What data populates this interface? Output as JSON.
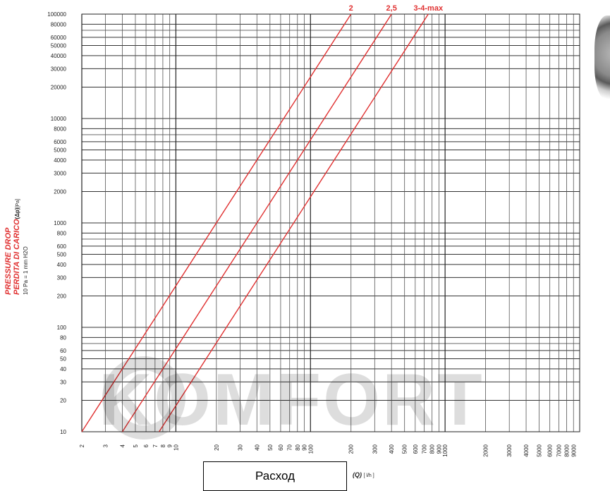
{
  "chart_data": {
    "type": "line",
    "xscale": "log",
    "yscale": "log",
    "xlim": [
      2,
      10000
    ],
    "ylim": [
      10,
      100000
    ],
    "grid": true,
    "ylabel_lines": [
      "PRESSURE DROP",
      "PERDITA DI CARICO"
    ],
    "ylabel_symbol": "(Δp)",
    "ylabel_unit": "[Pa]",
    "ylabel_note": "10 Pa = 1 mm H2O",
    "xlabel_symbol": "(Q)",
    "xlabel_unit": "[ l/h ]",
    "legend_box_text": "Расход",
    "x_tick_labels": [
      "2",
      "3",
      "4",
      "5",
      "6",
      "7",
      "8",
      "9",
      "10",
      "20",
      "30",
      "40",
      "50",
      "60",
      "70",
      "80",
      "90",
      "100",
      "200",
      "300",
      "400",
      "500",
      "600",
      "700",
      "800",
      "900",
      "1000",
      "2000",
      "3000",
      "4000",
      "5000",
      "6000",
      "7000",
      "8000",
      "9000"
    ],
    "y_tick_labels": [
      "100000",
      "80000",
      "60000",
      "50000",
      "40000",
      "30000",
      "20000",
      "10000",
      "8000",
      "6000",
      "5000",
      "4000",
      "3000",
      "2000",
      "1000",
      "800",
      "600",
      "500",
      "400",
      "300",
      "200",
      "100",
      "80",
      "60",
      "50",
      "40",
      "30",
      "20",
      "10"
    ],
    "series": [
      {
        "name": "2",
        "x": [
          2,
          200
        ],
        "y": [
          10,
          100000
        ]
      },
      {
        "name": "2,5",
        "x": [
          4,
          400
        ],
        "y": [
          10,
          100000
        ]
      },
      {
        "name": "3-4-max",
        "x": [
          7.5,
          750
        ],
        "y": [
          10,
          100000
        ]
      }
    ],
    "series_color": "#e03030",
    "watermark": "KOMFORT"
  }
}
